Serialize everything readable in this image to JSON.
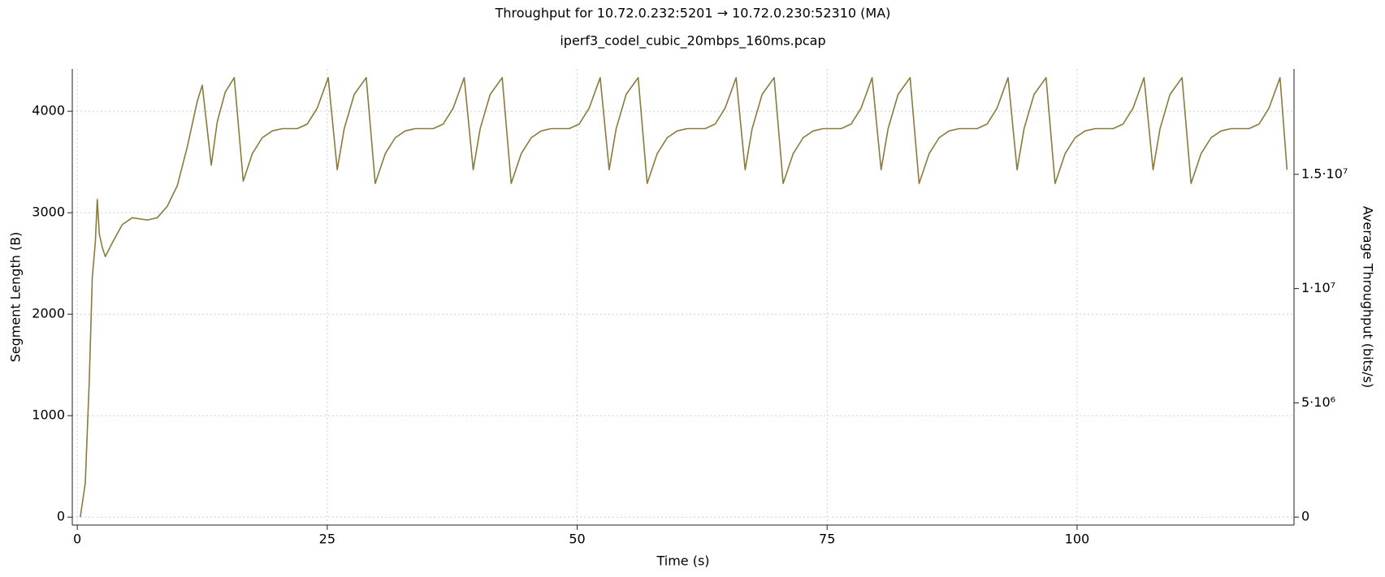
{
  "chart_data": {
    "type": "line",
    "title": "Throughput for 10.72.0.232:5201 → 10.72.0.230:52310 (MA)",
    "subtitle": "iperf3_codel_cubic_20mbps_160ms.pcap",
    "xlabel": "Time (s)",
    "ylabel": "Segment Length (B)",
    "y2label": "Average Throughput (bits/s)",
    "xlim": [
      -0.5,
      121.7
    ],
    "xticks": [
      0,
      25,
      50,
      75,
      100
    ],
    "ylim": [
      -78,
      4417
    ],
    "yticks": [
      0,
      1000,
      2000,
      3000,
      4000
    ],
    "y2lim": [
      -347000,
      19610000
    ],
    "y2ticks": [
      0,
      {
        "value": 5000000,
        "label": "5·10⁶"
      },
      {
        "value": 10000000,
        "label": "1·10⁷"
      },
      {
        "value": 15000000,
        "label": "1.5·10⁷"
      }
    ],
    "grid": true,
    "ylabel_color": "#2b5a8f",
    "y2label_color": "#7a5a06",
    "x": [
      0.3,
      0.8,
      1.2,
      1.5,
      1.8,
      2.0,
      2.2,
      2.5,
      2.8,
      3.5,
      4.5,
      5.5,
      7.0,
      8.0,
      9.0,
      10.0,
      11.0,
      12.0,
      12.5,
      13.4,
      14.0,
      14.8,
      15.7,
      16.6,
      17.5,
      18.5,
      19.5,
      20.5,
      22.0,
      23.0,
      24.0,
      25.1,
      26.0,
      26.7,
      27.7,
      28.9,
      29.8,
      30.8,
      31.8,
      32.8,
      33.8,
      35.6,
      36.6,
      37.6,
      38.7,
      39.6,
      40.3,
      41.3,
      42.5,
      43.4,
      44.4,
      45.4,
      46.4,
      47.4,
      49.2,
      50.2,
      51.2,
      52.3,
      53.2,
      53.9,
      54.9,
      56.1,
      57.0,
      58.0,
      59.0,
      60.0,
      61.0,
      62.8,
      63.8,
      64.8,
      65.9,
      66.8,
      67.5,
      68.5,
      69.7,
      70.6,
      71.6,
      72.6,
      73.6,
      74.6,
      76.4,
      77.4,
      78.4,
      79.5,
      80.4,
      81.1,
      82.1,
      83.3,
      84.2,
      85.2,
      86.2,
      87.2,
      88.2,
      90.0,
      91.0,
      92.0,
      93.1,
      94.0,
      94.7,
      95.7,
      96.9,
      97.8,
      98.8,
      99.8,
      100.8,
      101.8,
      103.6,
      104.6,
      105.6,
      106.7,
      107.6,
      108.3,
      109.3,
      110.5,
      111.4,
      112.4,
      113.4,
      114.4,
      115.4,
      117.2,
      118.2,
      119.2,
      120.3,
      121.0
    ],
    "series": [
      {
        "color": "#8a7a3c",
        "axis": "y2",
        "values": [
          0,
          1500000,
          6000000,
          10500000,
          12000000,
          13900000,
          12400000,
          11800000,
          11400000,
          12000000,
          12800000,
          13100000,
          13000000,
          13100000,
          13600000,
          14500000,
          16200000,
          18200000,
          18900000,
          15400000,
          17300000,
          18600000,
          19230000,
          14700000,
          15900000,
          16600000,
          16900000,
          17000000,
          17000000,
          17200000,
          17900000,
          19230000,
          15200000,
          17000000,
          18500000,
          19230000,
          14600000,
          15900000,
          16600000,
          16900000,
          17000000,
          17000000,
          17200000,
          17900000,
          19230000,
          15200000,
          17000000,
          18500000,
          19230000,
          14600000,
          15900000,
          16600000,
          16900000,
          17000000,
          17000000,
          17200000,
          17900000,
          19230000,
          15200000,
          17000000,
          18500000,
          19230000,
          14600000,
          15900000,
          16600000,
          16900000,
          17000000,
          17000000,
          17200000,
          17900000,
          19230000,
          15200000,
          17000000,
          18500000,
          19230000,
          14600000,
          15900000,
          16600000,
          16900000,
          17000000,
          17000000,
          17200000,
          17900000,
          19230000,
          15200000,
          17000000,
          18500000,
          19230000,
          14600000,
          15900000,
          16600000,
          16900000,
          17000000,
          17000000,
          17200000,
          17900000,
          19230000,
          15200000,
          17000000,
          18500000,
          19230000,
          14600000,
          15900000,
          16600000,
          16900000,
          17000000,
          17000000,
          17200000,
          17900000,
          19230000,
          15200000,
          17000000,
          18500000,
          19230000,
          14600000,
          15900000,
          16600000,
          16900000,
          17000000,
          17000000,
          17200000,
          17900000,
          19230000,
          15200000
        ]
      }
    ]
  }
}
